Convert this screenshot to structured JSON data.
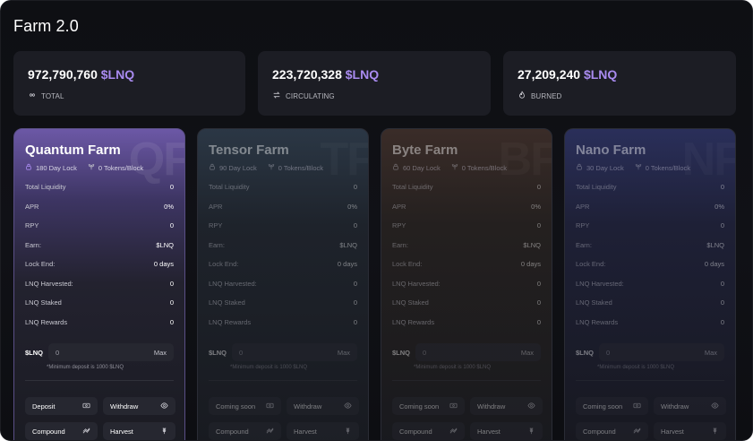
{
  "page": {
    "title": "Farm 2.0"
  },
  "stats": [
    {
      "value": "972,790,760",
      "token": "$LNQ",
      "label": "TOTAL",
      "icon": "infinity-icon"
    },
    {
      "value": "223,720,328",
      "token": "$LNQ",
      "label": "CIRCULATING",
      "icon": "swap-arrows-icon"
    },
    {
      "value": "27,209,240",
      "token": "$LNQ",
      "label": "BURNED",
      "icon": "flame-icon"
    }
  ],
  "farms": [
    {
      "title": "Quantum Farm",
      "watermark": "QF",
      "lock": "180 Day Lock",
      "rate": "0 Tokens/Block",
      "active": true,
      "accent": "#a98bf0",
      "rows": [
        {
          "label": "Total Liquidity",
          "value": "0"
        },
        {
          "label": "APR",
          "value": "0%"
        },
        {
          "label": "RPY",
          "value": "0"
        },
        {
          "label": "Earn:",
          "value": "$LNQ"
        },
        {
          "label": "Lock End:",
          "value": "0 days"
        },
        {
          "label": "LNQ Harvested:",
          "value": "0"
        },
        {
          "label": "LNQ Staked",
          "value": "0"
        },
        {
          "label": "LNQ Rewards",
          "value": "0"
        }
      ],
      "deposit": {
        "token": "$LNQ",
        "value": "0",
        "max": "Max",
        "note": "*Minimum deposit is 1000 $LNQ"
      },
      "actions": [
        "Deposit",
        "Withdraw",
        "Compound",
        "Harvest"
      ]
    },
    {
      "title": "Tensor Farm",
      "watermark": "TF",
      "lock": "90 Day Lock",
      "rate": "0 Tokens/Block",
      "active": false,
      "rows": [
        {
          "label": "Total Liquidity",
          "value": "0"
        },
        {
          "label": "APR",
          "value": "0%"
        },
        {
          "label": "RPY",
          "value": "0"
        },
        {
          "label": "Earn:",
          "value": "$LNQ"
        },
        {
          "label": "Lock End:",
          "value": "0 days"
        },
        {
          "label": "LNQ Harvested:",
          "value": "0"
        },
        {
          "label": "LNQ Staked",
          "value": "0"
        },
        {
          "label": "LNQ Rewards",
          "value": "0"
        }
      ],
      "deposit": {
        "token": "$LNQ",
        "value": "0",
        "max": "Max",
        "note": "*Minimum deposit is 1000 $LNQ"
      },
      "actions": [
        "Coming soon",
        "Withdraw",
        "Compound",
        "Harvest"
      ]
    },
    {
      "title": "Byte Farm",
      "watermark": "BF",
      "lock": "60 Day Lock",
      "rate": "0 Tokens/Block",
      "active": false,
      "rows": [
        {
          "label": "Total Liquidity",
          "value": "0"
        },
        {
          "label": "APR",
          "value": "0%"
        },
        {
          "label": "RPY",
          "value": "0"
        },
        {
          "label": "Earn:",
          "value": "$LNQ"
        },
        {
          "label": "Lock End:",
          "value": "0 days"
        },
        {
          "label": "LNQ Harvested:",
          "value": "0"
        },
        {
          "label": "LNQ Staked",
          "value": "0"
        },
        {
          "label": "LNQ Rewards",
          "value": "0"
        }
      ],
      "deposit": {
        "token": "$LNQ",
        "value": "0",
        "max": "Max",
        "note": "*Minimum deposit is 1000 $LNQ"
      },
      "actions": [
        "Coming soon",
        "Withdraw",
        "Compound",
        "Harvest"
      ]
    },
    {
      "title": "Nano Farm",
      "watermark": "NF",
      "lock": "30 Day Lock",
      "rate": "0 Tokens/Block",
      "active": false,
      "rows": [
        {
          "label": "Total Liquidity",
          "value": "0"
        },
        {
          "label": "APR",
          "value": "0%"
        },
        {
          "label": "RPY",
          "value": "0"
        },
        {
          "label": "Earn:",
          "value": "$LNQ"
        },
        {
          "label": "Lock End:",
          "value": "0 days"
        },
        {
          "label": "LNQ Harvested:",
          "value": "0"
        },
        {
          "label": "LNQ Staked",
          "value": "0"
        },
        {
          "label": "LNQ Rewards",
          "value": "0"
        }
      ],
      "deposit": {
        "token": "$LNQ",
        "value": "0",
        "max": "Max",
        "note": "*Minimum deposit is 1000 $LNQ"
      },
      "actions": [
        "Coming soon",
        "Withdraw",
        "Compound",
        "Harvest"
      ]
    }
  ]
}
